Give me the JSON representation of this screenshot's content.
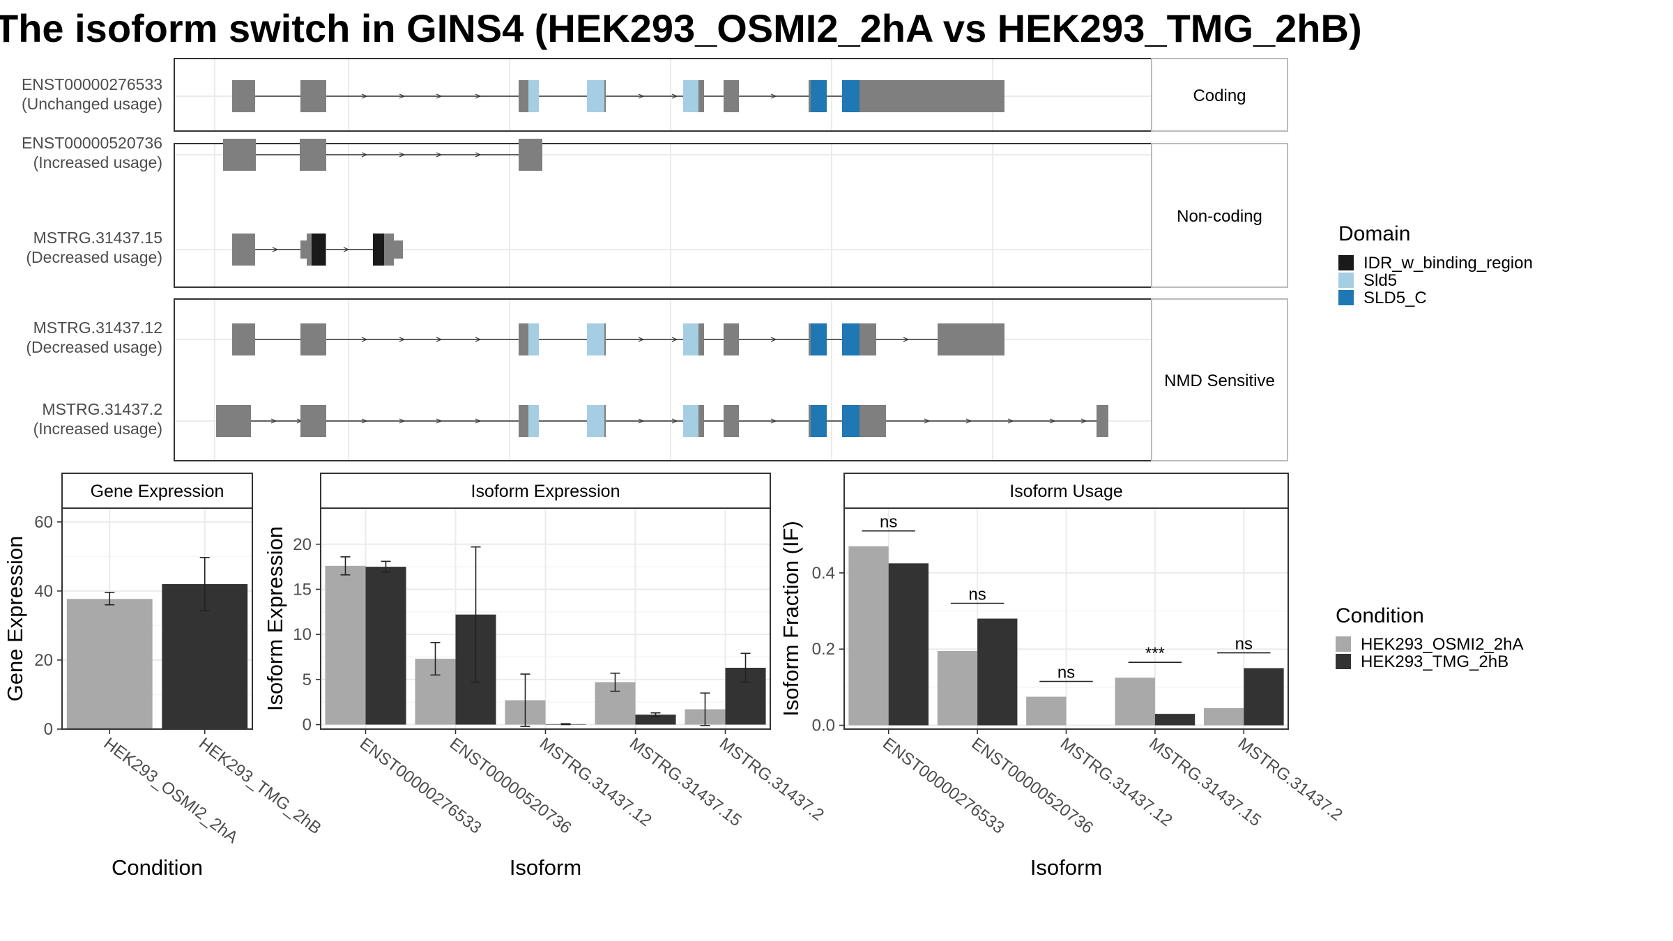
{
  "title": "The isoform switch in GINS4 (HEK293_OSMI2_2hA vs HEK293_TMG_2hB)",
  "colors": {
    "exon": "#7f7f7f",
    "panel_border": "#333333",
    "strip_border": "#bbbbbb",
    "grid_major": "#ebebeb",
    "grid_minor": "#f5f5f5",
    "condition_a": "#a9a9a9",
    "condition_b": "#333333"
  },
  "legend_domain": {
    "title": "Domain",
    "items": [
      {
        "label": "IDR_w_binding_region",
        "color": "#1a1a1a"
      },
      {
        "label": "Sld5",
        "color": "#a6cee3"
      },
      {
        "label": "SLD5_C",
        "color": "#1f78b4"
      }
    ]
  },
  "legend_condition": {
    "title": "Condition",
    "items": [
      {
        "label": "HEK293_OSMI2_2hA",
        "color": "#a9a9a9"
      },
      {
        "label": "HEK293_TMG_2hB",
        "color": "#333333"
      }
    ]
  },
  "chart_data": [
    {
      "type": "isoform-structure",
      "panels": [
        {
          "strip": "Coding",
          "isoforms": [
            {
              "id": "ENST00000276533",
              "usage": "(Unchanged usage)"
            }
          ]
        },
        {
          "strip": "Non-coding",
          "isoforms": [
            {
              "id": "ENST00000520736",
              "usage": "(Increased usage)"
            },
            {
              "id": "MSTRG.31437.15",
              "usage": "(Decreased usage)"
            }
          ]
        },
        {
          "strip": "NMD Sensitive",
          "isoforms": [
            {
              "id": "MSTRG.31437.12",
              "usage": "(Decreased usage)"
            },
            {
              "id": "MSTRG.31437.2",
              "usage": "(Increased usage)"
            }
          ]
        }
      ]
    },
    {
      "type": "bar",
      "strip": "Gene Expression",
      "xlabel": "Condition",
      "ylabel": "Gene Expression",
      "ylim": [
        0,
        64
      ],
      "yticks": [
        0,
        20,
        40,
        60
      ],
      "categories": [
        "HEK293_OSMI2_2hA",
        "HEK293_TMG_2hB"
      ],
      "values": [
        37.7,
        42.0
      ],
      "errors": [
        [
          36.0,
          39.6
        ],
        [
          34.3,
          49.7
        ]
      ]
    },
    {
      "type": "bar",
      "strip": "Isoform Expression",
      "xlabel": "Isoform",
      "ylabel": "Isoform Expression",
      "ylim": [
        -0.5,
        24
      ],
      "yticks": [
        0,
        5,
        10,
        15,
        20
      ],
      "categories": [
        "ENST00000276533",
        "ENST00000520736",
        "MSTRG.31437.12",
        "MSTRG.31437.15",
        "MSTRG.31437.2"
      ],
      "series": [
        {
          "name": "HEK293_OSMI2_2hA",
          "values": [
            17.6,
            7.3,
            2.7,
            4.7,
            1.7
          ],
          "errors": [
            [
              16.6,
              18.6
            ],
            [
              5.5,
              9.1
            ],
            [
              -0.2,
              5.6
            ],
            [
              3.7,
              5.7
            ],
            [
              -0.1,
              3.5
            ]
          ]
        },
        {
          "name": "HEK293_TMG_2hB",
          "values": [
            17.5,
            12.2,
            0.05,
            1.1,
            6.3
          ],
          "errors": [
            [
              16.9,
              18.1
            ],
            [
              4.7,
              19.7
            ],
            [
              0.0,
              0.1
            ],
            [
              0.9,
              1.3
            ],
            [
              4.7,
              7.9
            ]
          ]
        }
      ]
    },
    {
      "type": "bar",
      "strip": "Isoform Usage",
      "xlabel": "Isoform",
      "ylabel": "Isoform Fraction (IF)",
      "ylim": [
        -0.01,
        0.57
      ],
      "yticks": [
        0.0,
        0.2,
        0.4
      ],
      "tick_labels": [
        "0.0",
        "0.2",
        "0.4"
      ],
      "categories": [
        "ENST00000276533",
        "ENST00000520736",
        "MSTRG.31437.12",
        "MSTRG.31437.15",
        "MSTRG.31437.2"
      ],
      "series": [
        {
          "name": "HEK293_OSMI2_2hA",
          "values": [
            0.47,
            0.195,
            0.075,
            0.125,
            0.045
          ]
        },
        {
          "name": "HEK293_TMG_2hB",
          "values": [
            0.425,
            0.28,
            0.0,
            0.03,
            0.15
          ]
        }
      ],
      "significance": [
        "ns",
        "ns",
        "ns",
        "***",
        "ns"
      ]
    }
  ]
}
